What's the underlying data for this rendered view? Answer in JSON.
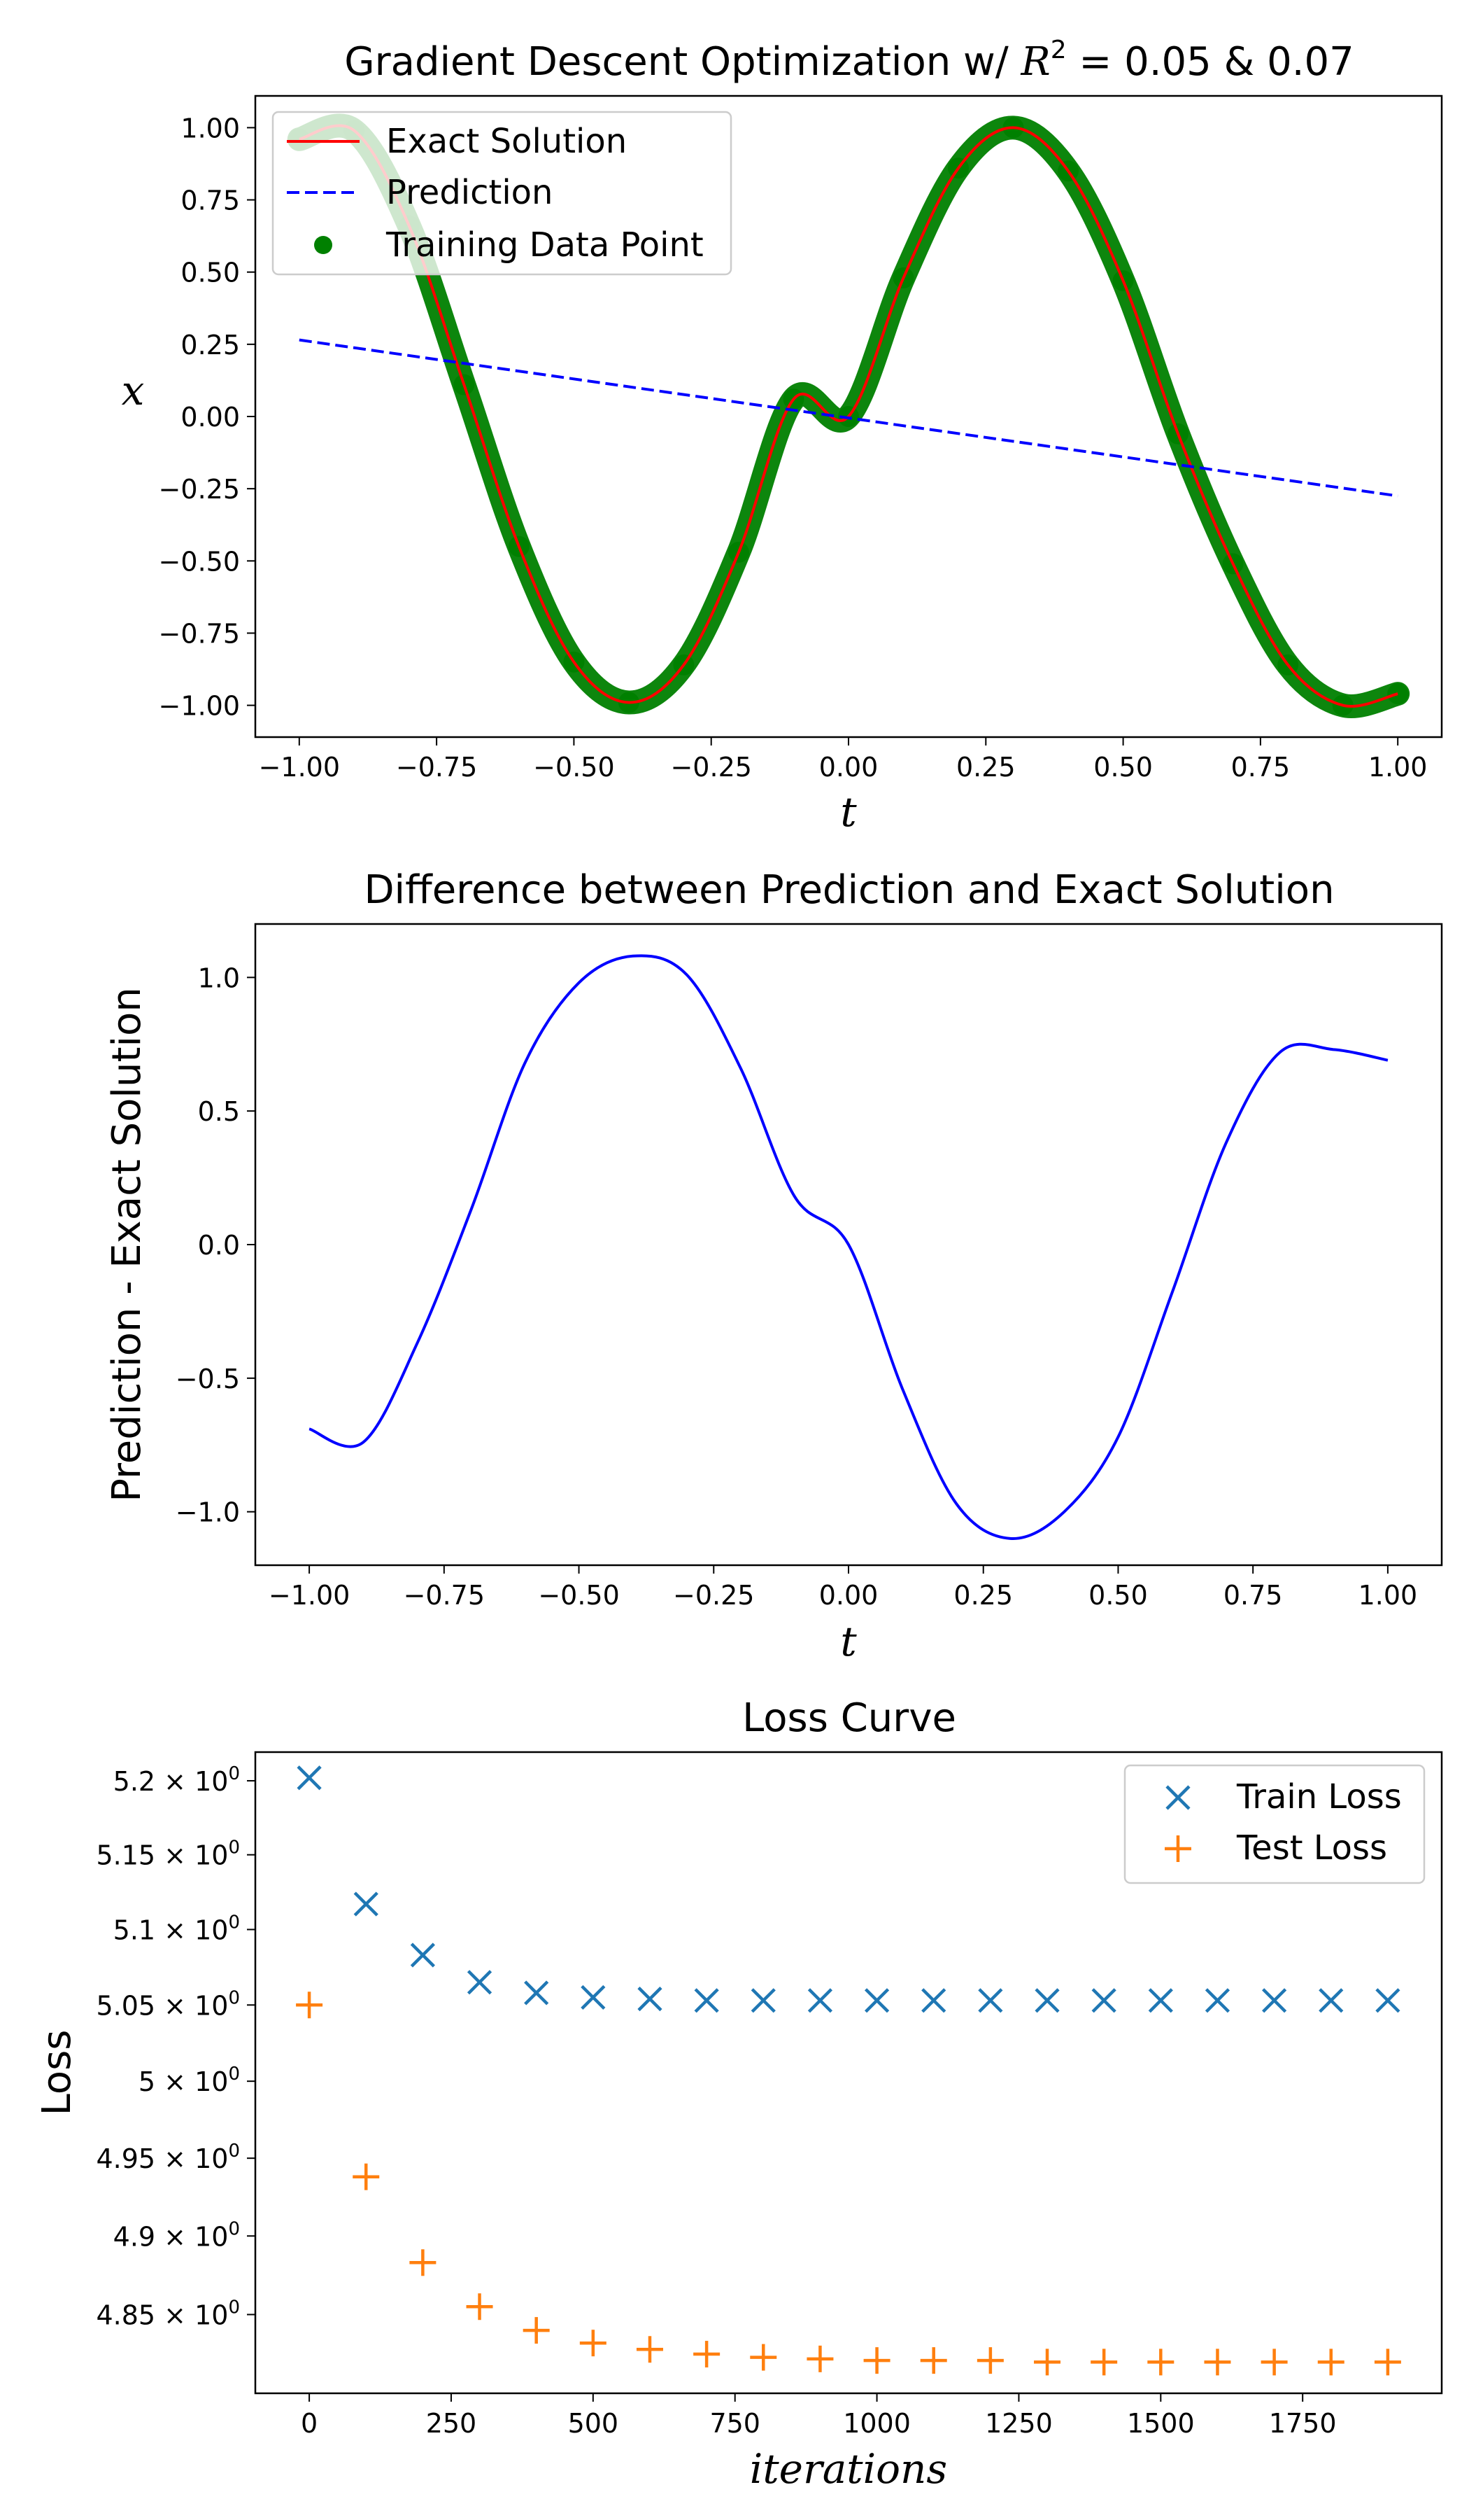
{
  "figure": {
    "background": "#ffffff"
  },
  "chart_data": [
    {
      "type": "line",
      "title_parts": [
        "Gradient Descent Optimization w/ ",
        "R",
        "2",
        " = 0.05 & 0.07"
      ],
      "xlabel": "t",
      "ylabel": "x",
      "xlim": [
        -1.08,
        1.08
      ],
      "ylim": [
        -1.11,
        1.11
      ],
      "xticks": [
        -1.0,
        -0.75,
        -0.5,
        -0.25,
        0.0,
        0.25,
        0.5,
        0.75,
        1.0
      ],
      "xtick_labels": [
        "−1.00",
        "−0.75",
        "−0.50",
        "−0.25",
        "0.00",
        "0.25",
        "0.50",
        "0.75",
        "1.00"
      ],
      "yticks": [
        -1.0,
        -0.75,
        -0.5,
        -0.25,
        0.0,
        0.25,
        0.5,
        0.75,
        1.0
      ],
      "ytick_labels": [
        "−1.00",
        "−0.75",
        "−0.50",
        "−0.25",
        "0.00",
        "0.25",
        "0.50",
        "0.75",
        "1.00"
      ],
      "legend_position": "top-left",
      "series": [
        {
          "name": "Exact Solution",
          "kind": "line",
          "color": "#ff0000",
          "x": [
            -1.0,
            -0.9,
            -0.8,
            -0.7,
            -0.6,
            -0.5,
            -0.4,
            -0.3,
            -0.2,
            -0.1,
            0.0,
            0.1,
            0.2,
            0.3,
            0.4,
            0.5,
            0.6,
            0.7,
            0.8,
            0.9,
            1.0
          ],
          "y": [
            0.96,
            0.99,
            0.66,
            0.11,
            -0.45,
            -0.85,
            -0.99,
            -0.86,
            -0.47,
            0.06,
            0.0,
            0.48,
            0.86,
            1.0,
            0.85,
            0.47,
            -0.06,
            -0.51,
            -0.86,
            -1.0,
            -0.96
          ]
        },
        {
          "name": "Prediction",
          "kind": "dashed-line",
          "color": "#0000ff",
          "x": [
            -1.0,
            1.0
          ],
          "y": [
            0.265,
            -0.275
          ]
        },
        {
          "name": "Training Data Point",
          "kind": "scatter",
          "color": "#008000",
          "x": [
            -1.0,
            -0.9,
            -0.8,
            -0.7,
            -0.6,
            -0.5,
            -0.4,
            -0.3,
            -0.2,
            -0.1,
            0.0,
            0.1,
            0.2,
            0.3,
            0.4,
            0.5,
            0.6,
            0.7,
            0.8,
            0.9,
            1.0
          ],
          "y": [
            0.96,
            0.99,
            0.66,
            0.11,
            -0.45,
            -0.85,
            -0.99,
            -0.86,
            -0.47,
            0.06,
            0.0,
            0.48,
            0.86,
            1.0,
            0.85,
            0.47,
            -0.06,
            -0.51,
            -0.86,
            -1.0,
            -0.96
          ]
        }
      ]
    },
    {
      "type": "line",
      "title": "Difference between Prediction and Exact Solution",
      "xlabel": "t",
      "ylabel": "Prediction - Exact Solution",
      "xlim": [
        -1.1,
        1.1
      ],
      "ylim": [
        -1.2,
        1.2
      ],
      "xticks": [
        -1.0,
        -0.75,
        -0.5,
        -0.25,
        0.0,
        0.25,
        0.5,
        0.75,
        1.0
      ],
      "xtick_labels": [
        "−1.00",
        "−0.75",
        "−0.50",
        "−0.25",
        "0.00",
        "0.25",
        "0.50",
        "0.75",
        "1.00"
      ],
      "yticks": [
        -1.0,
        -0.5,
        0.0,
        0.5,
        1.0
      ],
      "ytick_labels": [
        "−1.0",
        "−0.5",
        "0.0",
        "0.5",
        "1.0"
      ],
      "series": [
        {
          "kind": "line",
          "color": "#0000ff",
          "x": [
            -1.0,
            -0.9,
            -0.8,
            -0.7,
            -0.6,
            -0.5,
            -0.4,
            -0.3,
            -0.2,
            -0.1,
            0.0,
            0.1,
            0.2,
            0.3,
            0.4,
            0.5,
            0.6,
            0.7,
            0.8,
            0.9,
            1.0
          ],
          "y": [
            -0.69,
            -0.74,
            -0.37,
            0.13,
            0.68,
            0.98,
            1.08,
            1.01,
            0.66,
            0.18,
            0.0,
            -0.54,
            -0.97,
            -1.1,
            -1.0,
            -0.72,
            -0.18,
            0.38,
            0.72,
            0.73,
            0.69
          ]
        }
      ]
    },
    {
      "type": "scatter",
      "title": "Loss Curve",
      "xlabel": "iterations",
      "ylabel": "Loss",
      "xlim": [
        -95,
        1995
      ],
      "ylim": [
        4.8004,
        5.2195
      ],
      "yscale": "log",
      "xticks": [
        0,
        250,
        500,
        750,
        1000,
        1250,
        1500,
        1750
      ],
      "xtick_labels": [
        "0",
        "250",
        "500",
        "750",
        "1000",
        "1250",
        "1500",
        "1750"
      ],
      "yticks": [
        {
          "value": 4.85,
          "mant": "4.85"
        },
        {
          "value": 4.9,
          "mant": "4.9"
        },
        {
          "value": 4.95,
          "mant": "4.95"
        },
        {
          "value": 5.0,
          "mant": "5"
        },
        {
          "value": 5.05,
          "mant": "5.05"
        },
        {
          "value": 5.1,
          "mant": "5.1"
        },
        {
          "value": 5.15,
          "mant": "5.15"
        },
        {
          "value": 5.2,
          "mant": "5.2"
        }
      ],
      "ytick_times": "× 10",
      "ytick_exp": "0",
      "legend_position": "top-right",
      "x": [
        0,
        100,
        200,
        300,
        400,
        500,
        600,
        700,
        800,
        900,
        1000,
        1100,
        1200,
        1300,
        1400,
        1500,
        1600,
        1700,
        1800,
        1900
      ],
      "series": [
        {
          "name": "Train Loss",
          "marker": "x",
          "color": "#1f77b4",
          "values": [
            5.202,
            5.117,
            5.083,
            5.065,
            5.058,
            5.055,
            5.054,
            5.053,
            5.053,
            5.053,
            5.053,
            5.053,
            5.053,
            5.053,
            5.053,
            5.053,
            5.053,
            5.053,
            5.053,
            5.053
          ]
        },
        {
          "name": "Test Loss",
          "marker": "+",
          "color": "#ff7f0e",
          "values": [
            5.05,
            4.938,
            4.883,
            4.855,
            4.84,
            4.832,
            4.828,
            4.825,
            4.823,
            4.822,
            4.821,
            4.821,
            4.821,
            4.82,
            4.82,
            4.82,
            4.82,
            4.82,
            4.82,
            4.82
          ]
        }
      ]
    }
  ]
}
